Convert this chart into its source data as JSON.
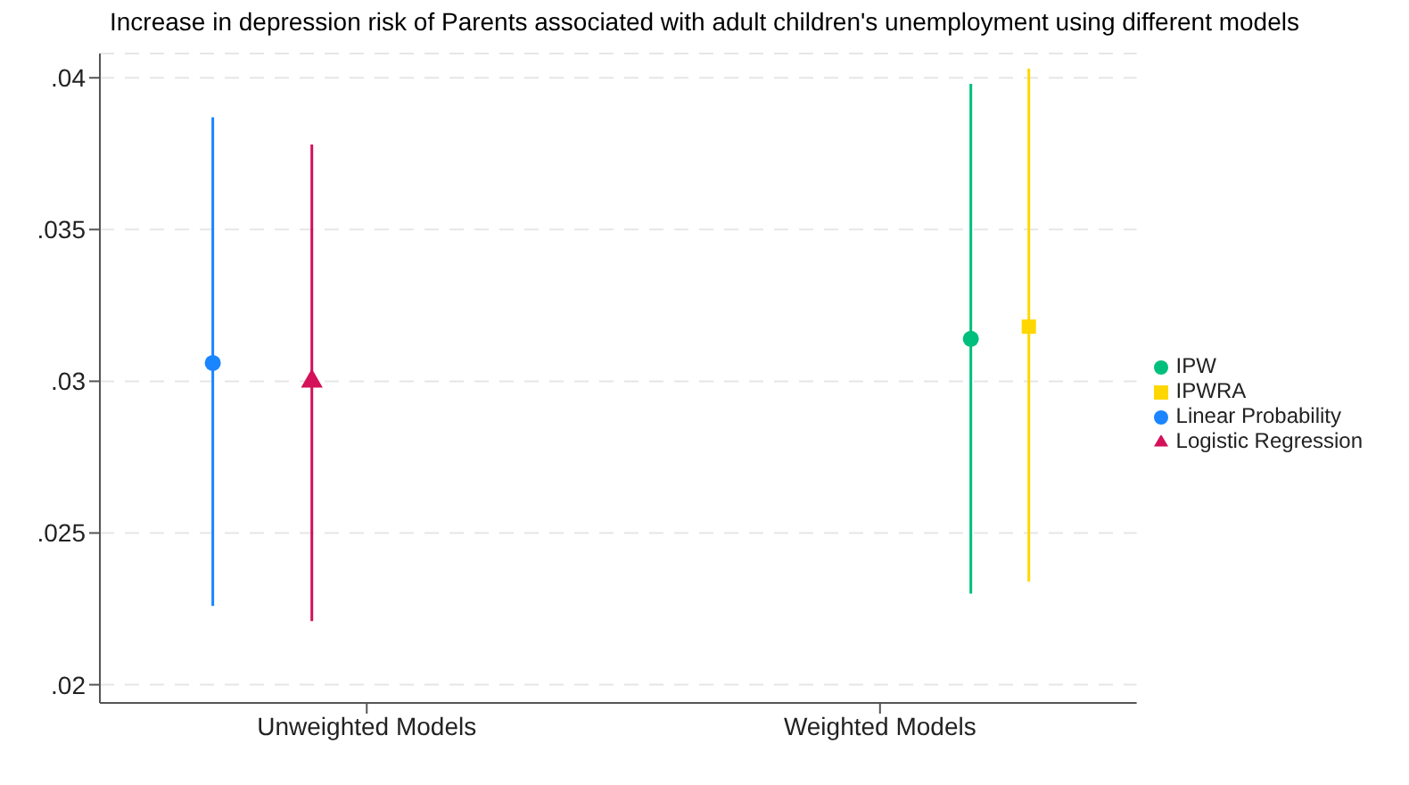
{
  "chart_data": {
    "type": "scatter",
    "title": "Increase in depression risk of Parents associated with adult children's unemployment using different models",
    "categories": [
      "Unweighted Models",
      "Weighted Models"
    ],
    "series": [
      {
        "name": "Linear Probability",
        "color": "#1a85ff",
        "marker": "circle",
        "x": [
          "Unweighted Models"
        ],
        "values": [
          0.0306
        ],
        "errors": [
          [
            0.0226,
            0.0387
          ]
        ]
      },
      {
        "name": "Logistic Regression",
        "color": "#d41159",
        "marker": "triangle",
        "x": [
          "Unweighted Models"
        ],
        "values": [
          0.03
        ],
        "errors": [
          [
            0.0221,
            0.0378
          ]
        ]
      },
      {
        "name": "IPW",
        "color": "#00bf7d",
        "marker": "circle",
        "x": [
          "Weighted Models"
        ],
        "values": [
          0.0314
        ],
        "errors": [
          [
            0.023,
            0.0398
          ]
        ]
      },
      {
        "name": "IPWRA",
        "color": "#ffd700",
        "marker": "square",
        "x": [
          "Weighted Models"
        ],
        "values": [
          0.0318
        ],
        "errors": [
          [
            0.0234,
            0.0403
          ]
        ]
      }
    ],
    "ylim": [
      0.0194,
      0.0408
    ],
    "yticks": [
      {
        "value": 0.02,
        "label": ".02"
      },
      {
        "value": 0.025,
        "label": ".025"
      },
      {
        "value": 0.03,
        "label": ".03"
      },
      {
        "value": 0.035,
        "label": ".035"
      },
      {
        "value": 0.04,
        "label": ".04"
      }
    ],
    "grid": "y",
    "legend": "right"
  }
}
